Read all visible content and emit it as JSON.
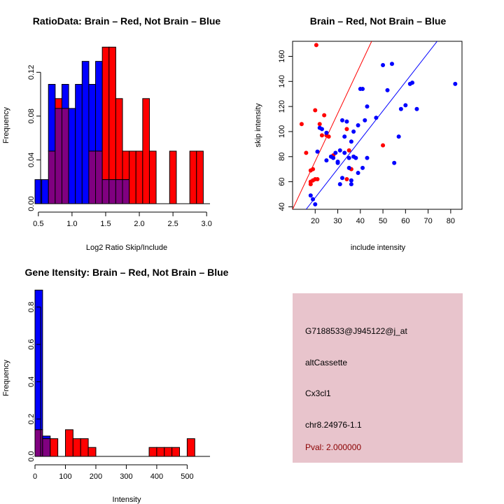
{
  "colors": {
    "red": "#ff0000",
    "blue": "#0000ff",
    "overlap": "#800080",
    "info_bg": "#e8c4cc",
    "pval": "#8b0000"
  },
  "chart_data": [
    {
      "id": "ratio_hist",
      "type": "bar",
      "title": "RatioData: Brain – Red, Not Brain – Blue",
      "xlabel": "Log2 Ratio Skip/Include",
      "ylabel": "Frequency",
      "xlim": [
        0.45,
        3.05
      ],
      "ylim": [
        0,
        0.14
      ],
      "xticks": [
        0.5,
        1.0,
        1.5,
        2.0,
        2.5,
        3.0
      ],
      "xtick_labels": [
        "0.5",
        "1.0",
        "1.5",
        "2.0",
        "2.5",
        "3.0"
      ],
      "yticks": [
        0,
        0.04,
        0.08,
        0.12
      ],
      "ytick_labels": [
        "0.00",
        "0.04",
        "0.08",
        "0.12"
      ],
      "bin_width": 0.1,
      "bin_starts": [
        0.45,
        0.55,
        0.65,
        0.75,
        0.85,
        0.95,
        1.05,
        1.15,
        1.25,
        1.35,
        1.45,
        1.55,
        1.65,
        1.75,
        1.85,
        1.95,
        2.05,
        2.15,
        2.25,
        2.35,
        2.45,
        2.55,
        2.65,
        2.75,
        2.85,
        2.95
      ],
      "series": [
        {
          "name": "Brain",
          "color": "red",
          "values": [
            0,
            0,
            0.048,
            0.096,
            0.087,
            0,
            0,
            0,
            0.048,
            0.048,
            0.143,
            0.143,
            0.096,
            0.048,
            0.048,
            0.048,
            0.096,
            0.048,
            0,
            0,
            0.048,
            0,
            0,
            0.048,
            0.048,
            0
          ]
        },
        {
          "name": "Not Brain",
          "color": "blue",
          "values": [
            0.022,
            0.022,
            0.109,
            0.087,
            0.109,
            0.087,
            0.109,
            0.13,
            0.109,
            0.13,
            0.022,
            0.022,
            0.022,
            0.022,
            0,
            0,
            0,
            0,
            0,
            0,
            0,
            0,
            0,
            0,
            0,
            0
          ]
        }
      ]
    },
    {
      "id": "scatter",
      "type": "scatter",
      "title": "Brain – Red, Not Brain – Blue",
      "xlabel": "include intensity",
      "ylabel": "skip intensity",
      "xlim": [
        10,
        85
      ],
      "ylim": [
        38,
        172
      ],
      "xticks": [
        20,
        30,
        40,
        50,
        60,
        70,
        80
      ],
      "xtick_labels": [
        "20",
        "30",
        "40",
        "50",
        "60",
        "70",
        "80"
      ],
      "yticks": [
        40,
        60,
        80,
        100,
        120,
        140,
        160
      ],
      "ytick_labels": [
        "40",
        "60",
        "80",
        "100",
        "120",
        "140",
        "160"
      ],
      "lines": [
        {
          "name": "Brain fit",
          "color": "red",
          "x1": 10,
          "y1": 38,
          "x2": 45,
          "y2": 172
        },
        {
          "name": "Not Brain fit",
          "color": "blue",
          "x1": 16,
          "y1": 38,
          "x2": 74,
          "y2": 172
        }
      ],
      "series": [
        {
          "name": "Brain",
          "color": "red",
          "points": [
            [
              20.5,
              169
            ],
            [
              14,
              106
            ],
            [
              16,
              83
            ],
            [
              18,
              69
            ],
            [
              19,
              70
            ],
            [
              18,
              60
            ],
            [
              19,
              61
            ],
            [
              18,
              58
            ],
            [
              20,
              62
            ],
            [
              21,
              62
            ],
            [
              20,
              117
            ],
            [
              22,
              106
            ],
            [
              24,
              113
            ],
            [
              23,
              97
            ],
            [
              25,
              97
            ],
            [
              26,
              96
            ],
            [
              28,
              81
            ],
            [
              34,
              102
            ],
            [
              35,
              85
            ],
            [
              34,
              62
            ],
            [
              36,
              70
            ],
            [
              50,
              89
            ]
          ]
        },
        {
          "name": "Not Brain",
          "color": "blue",
          "points": [
            [
              18,
              49
            ],
            [
              19,
              46
            ],
            [
              20,
              42
            ],
            [
              21,
              84
            ],
            [
              22,
              103
            ],
            [
              23,
              102
            ],
            [
              25,
              99
            ],
            [
              25,
              77
            ],
            [
              27,
              80
            ],
            [
              28,
              79
            ],
            [
              29,
              83
            ],
            [
              30,
              76
            ],
            [
              30,
              75
            ],
            [
              31,
              85
            ],
            [
              31,
              58
            ],
            [
              32,
              63
            ],
            [
              32,
              109
            ],
            [
              33,
              96
            ],
            [
              33,
              83
            ],
            [
              34,
              108
            ],
            [
              35,
              79
            ],
            [
              35,
              71
            ],
            [
              36,
              61
            ],
            [
              36,
              58
            ],
            [
              36,
              92
            ],
            [
              37,
              100
            ],
            [
              37,
              80
            ],
            [
              38,
              79
            ],
            [
              39,
              105
            ],
            [
              39,
              67
            ],
            [
              40,
              134
            ],
            [
              41,
              134
            ],
            [
              41,
              71
            ],
            [
              42,
              109
            ],
            [
              43,
              79
            ],
            [
              43,
              120
            ],
            [
              47,
              111
            ],
            [
              50,
              153
            ],
            [
              52,
              133
            ],
            [
              54,
              154
            ],
            [
              55,
              75
            ],
            [
              57,
              96
            ],
            [
              58,
              118
            ],
            [
              60,
              121
            ],
            [
              62,
              138
            ],
            [
              63,
              139
            ],
            [
              65,
              118
            ],
            [
              82,
              138
            ]
          ]
        }
      ]
    },
    {
      "id": "intensity_hist",
      "type": "bar",
      "title": "Gene Itensity: Brain – Red, Not Brain – Blue",
      "xlabel": "Intensity",
      "ylabel": "Frequency",
      "xlim": [
        0,
        575
      ],
      "ylim": [
        0,
        0.9
      ],
      "xticks": [
        0,
        100,
        200,
        300,
        400,
        500
      ],
      "xtick_labels": [
        "0",
        "100",
        "200",
        "300",
        "400",
        "500"
      ],
      "yticks": [
        0,
        0.2,
        0.4,
        0.6,
        0.8
      ],
      "ytick_labels": [
        "0.0",
        "0.2",
        "0.4",
        "0.6",
        "0.8"
      ],
      "bin_width": 25,
      "bin_starts": [
        0,
        25,
        50,
        75,
        100,
        125,
        150,
        175,
        200,
        225,
        250,
        275,
        300,
        325,
        350,
        375,
        400,
        425,
        450,
        475,
        500,
        525,
        550
      ],
      "series": [
        {
          "name": "Brain",
          "color": "red",
          "values": [
            0.143,
            0.095,
            0.095,
            0,
            0.143,
            0.095,
            0.095,
            0.048,
            0,
            0,
            0,
            0,
            0,
            0,
            0,
            0.048,
            0.048,
            0.048,
            0.048,
            0,
            0.095,
            0,
            0
          ]
        },
        {
          "name": "Not Brain",
          "color": "blue",
          "values": [
            0.891,
            0.109,
            0,
            0,
            0,
            0,
            0,
            0,
            0,
            0,
            0,
            0,
            0,
            0,
            0,
            0,
            0,
            0,
            0,
            0,
            0,
            0,
            0
          ]
        }
      ]
    }
  ],
  "info_panel": {
    "probe": "G7188533@J945122@j_at",
    "event_type": "altCassette",
    "gene": "Cx3cl1",
    "location": "chr8.24976-1.1",
    "pval": "Pval: 2.000000"
  }
}
